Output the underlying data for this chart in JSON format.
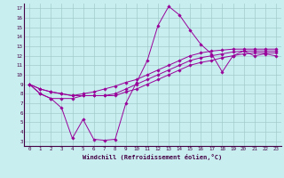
{
  "xlabel": "Windchill (Refroidissement éolien,°C)",
  "bg_color": "#c8eef0",
  "grid_color": "#a0c8c8",
  "line_color": "#990099",
  "xlim": [
    -0.5,
    23.5
  ],
  "ylim": [
    2.5,
    17.5
  ],
  "xticks": [
    0,
    1,
    2,
    3,
    4,
    5,
    6,
    7,
    8,
    9,
    10,
    11,
    12,
    13,
    14,
    15,
    16,
    17,
    18,
    19,
    20,
    21,
    22,
    23
  ],
  "yticks": [
    3,
    4,
    5,
    6,
    7,
    8,
    9,
    10,
    11,
    12,
    13,
    14,
    15,
    16,
    17
  ],
  "series": [
    [
      9.0,
      8.0,
      7.5,
      6.5,
      3.3,
      5.3,
      3.2,
      3.1,
      3.2,
      7.0,
      9.2,
      11.5,
      15.2,
      17.2,
      16.3,
      14.7,
      13.2,
      12.2,
      10.3,
      12.0,
      12.5,
      12.0,
      12.2,
      12.0
    ],
    [
      9.0,
      8.0,
      7.5,
      7.5,
      7.5,
      7.8,
      7.8,
      7.8,
      7.8,
      8.2,
      8.5,
      9.0,
      9.5,
      10.0,
      10.5,
      11.0,
      11.3,
      11.5,
      11.8,
      12.0,
      12.2,
      12.3,
      12.3,
      12.3
    ],
    [
      9.0,
      8.5,
      8.2,
      8.0,
      7.8,
      7.8,
      7.8,
      7.8,
      8.0,
      8.5,
      9.0,
      9.5,
      10.0,
      10.5,
      11.0,
      11.5,
      11.8,
      12.0,
      12.2,
      12.4,
      12.5,
      12.5,
      12.5,
      12.5
    ],
    [
      9.0,
      8.5,
      8.2,
      8.0,
      7.8,
      8.0,
      8.2,
      8.5,
      8.8,
      9.2,
      9.5,
      10.0,
      10.5,
      11.0,
      11.5,
      12.0,
      12.3,
      12.5,
      12.6,
      12.7,
      12.7,
      12.7,
      12.7,
      12.7
    ]
  ]
}
